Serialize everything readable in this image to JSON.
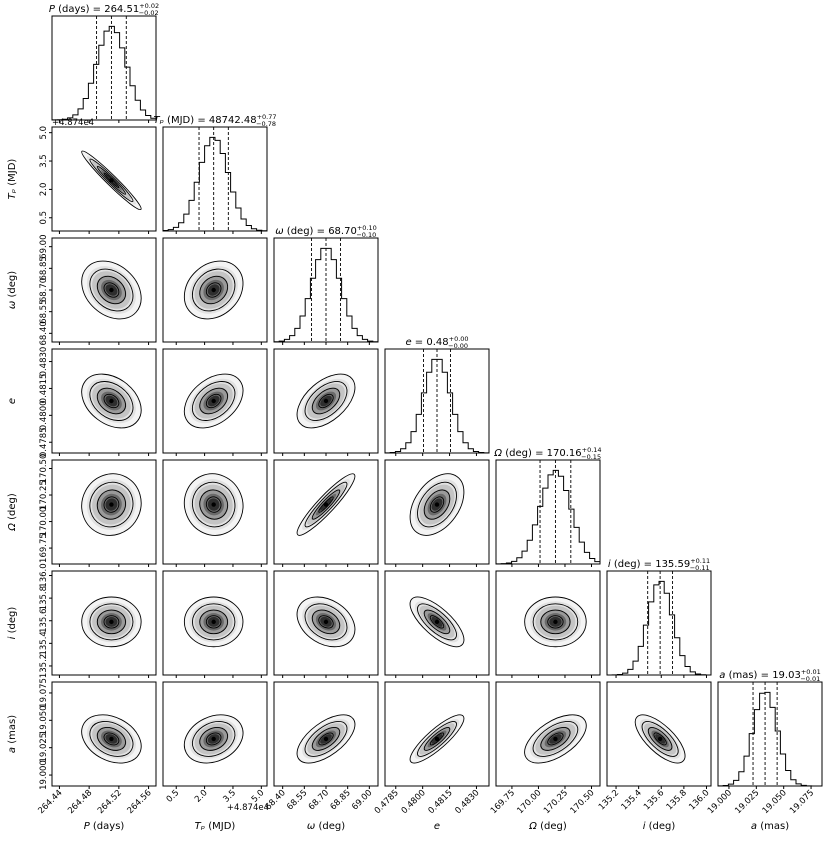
{
  "chart_data": {
    "type": "corner",
    "params": [
      {
        "key": "P",
        "label": "P (days)",
        "title_name": "P",
        "title_unit": " (days)",
        "title_value": "264.51",
        "plus": "0.02",
        "minus": "0.02",
        "median": 264.51,
        "sigma": 0.02,
        "range": [
          264.43,
          264.57
        ],
        "ticks": [
          264.44,
          264.48,
          264.52,
          264.56
        ],
        "tick_labels": [
          "264.44",
          "264.48",
          "264.52",
          "264.56"
        ],
        "offset": ""
      },
      {
        "key": "Tp",
        "label": "Tₚ (MJD)",
        "title_name": "Tₚ",
        "title_unit": " (MJD)",
        "title_value": "48742.48",
        "plus": "0.77",
        "minus": "0.78",
        "median": 2.48,
        "sigma": 0.775,
        "range": [
          -0.2,
          5.3
        ],
        "ticks": [
          0.5,
          2.0,
          3.5,
          5.0
        ],
        "tick_labels": [
          "0.5",
          "2.0",
          "3.5",
          "5.0"
        ],
        "offset": "+4.874e4"
      },
      {
        "key": "omega",
        "label": "ω (deg)",
        "title_name": "ω",
        "title_unit": " (deg)",
        "title_value": "68.70",
        "plus": "0.10",
        "minus": "0.10",
        "median": 68.7,
        "sigma": 0.1,
        "range": [
          68.34,
          69.06
        ],
        "ticks": [
          68.4,
          68.55,
          68.7,
          68.85,
          69.0
        ],
        "tick_labels": [
          "68.40",
          "68.55",
          "68.70",
          "68.85",
          "69.00"
        ],
        "offset": ""
      },
      {
        "key": "e",
        "label": "e",
        "title_name": "e",
        "title_unit": "",
        "title_value": "0.48",
        "plus": "0.00",
        "minus": "0.00",
        "median": 0.4808,
        "sigma": 0.00075,
        "range": [
          0.4779,
          0.4837
        ],
        "ticks": [
          0.4785,
          0.48,
          0.4815,
          0.483
        ],
        "tick_labels": [
          "0.4785",
          "0.4800",
          "0.4815",
          "0.4830"
        ],
        "offset": ""
      },
      {
        "key": "Omega",
        "label": "Ω (deg)",
        "title_name": "Ω",
        "title_unit": " (deg)",
        "title_value": "170.16",
        "plus": "0.14",
        "minus": "0.15",
        "median": 170.16,
        "sigma": 0.145,
        "range": [
          169.6,
          170.58
        ],
        "ticks": [
          169.75,
          170.0,
          170.25,
          170.5
        ],
        "tick_labels": [
          "169.75",
          "170.00",
          "170.25",
          "170.50"
        ],
        "offset": ""
      },
      {
        "key": "i",
        "label": "i (deg)",
        "title_name": "i",
        "title_unit": " (deg)",
        "title_value": "135.59",
        "plus": "0.11",
        "minus": "0.11",
        "median": 135.59,
        "sigma": 0.11,
        "range": [
          135.12,
          136.04
        ],
        "ticks": [
          135.2,
          135.4,
          135.6,
          135.8,
          136.0
        ],
        "tick_labels": [
          "135.2",
          "135.4",
          "135.6",
          "135.8",
          "136.0"
        ],
        "offset": ""
      },
      {
        "key": "a",
        "label": "a (mas)",
        "title_name": "a",
        "title_unit": " (mas)",
        "title_value": "19.03",
        "plus": "0.01",
        "minus": "0.01",
        "median": 19.033,
        "sigma": 0.011,
        "range": [
          18.99,
          19.085
        ],
        "ticks": [
          19.0,
          19.025,
          19.05,
          19.075
        ],
        "tick_labels": [
          "19.000",
          "19.025",
          "19.050",
          "19.075"
        ],
        "offset": ""
      }
    ],
    "correlations": [
      [
        1.0,
        -0.97,
        -0.28,
        -0.33,
        0.05,
        0.0,
        -0.3
      ],
      [
        -0.97,
        1.0,
        0.22,
        0.38,
        -0.05,
        0.0,
        0.25
      ],
      [
        -0.28,
        0.22,
        1.0,
        0.5,
        0.92,
        -0.3,
        0.6
      ],
      [
        -0.33,
        0.38,
        0.5,
        1.0,
        0.4,
        -0.72,
        0.85
      ],
      [
        0.05,
        -0.05,
        0.92,
        0.4,
        1.0,
        0.0,
        0.55
      ],
      [
        0.0,
        0.0,
        -0.3,
        -0.72,
        0.0,
        1.0,
        -0.7
      ],
      [
        -0.3,
        0.25,
        0.6,
        0.85,
        0.55,
        -0.7,
        1.0
      ]
    ],
    "quantiles": [
      0.16,
      0.5,
      0.84
    ],
    "histogram_bins": 20,
    "grid": false
  }
}
